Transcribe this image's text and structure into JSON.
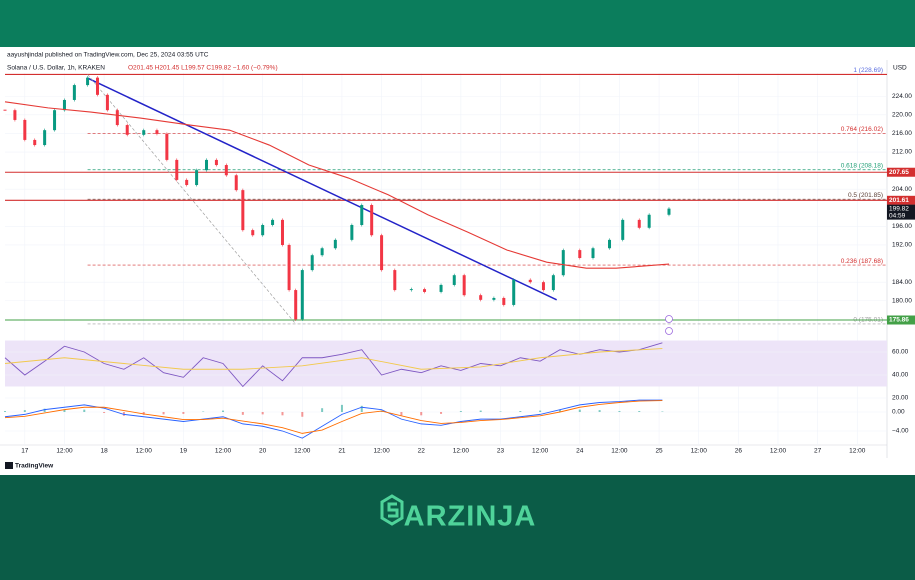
{
  "header": {
    "publisher": "aayushjindal published on TradingView.com, Dec 25, 2024 03:55 UTC",
    "ohlc": "O201.45 H201.45 L199.57 C199.82 −1.60 (−0.79%)",
    "currency": "USD",
    "footer": "TradingView"
  },
  "brand": "ARZINJA",
  "chart_data": [
    {
      "type": "candlestick",
      "title": "Solana / U.S. Dollar, 1h, KRAKEN",
      "up_color": "#089981",
      "down_color": "#f23645",
      "x": [
        -6,
        -3,
        0,
        3,
        6,
        9,
        12,
        15,
        19,
        22,
        25,
        28,
        31,
        36,
        40,
        43,
        46,
        49,
        52,
        55,
        58,
        61,
        64,
        66,
        69,
        72,
        75,
        78,
        80,
        82,
        84,
        87,
        90,
        94,
        99,
        102,
        105,
        108,
        112,
        117,
        121,
        126,
        130,
        133,
        138,
        142,
        145,
        148,
        153,
        157,
        160,
        163,
        168,
        172,
        177,
        181,
        186,
        189,
        195
      ],
      "close": [
        221.0,
        218.9,
        214.6,
        213.5,
        216.7,
        221.0,
        223.2,
        226.4,
        228.0,
        224.3,
        221.0,
        217.8,
        215.7,
        216.7,
        215.9,
        210.3,
        206.0,
        204.9,
        208.1,
        210.3,
        209.2,
        207.0,
        203.8,
        195.2,
        194.1,
        196.3,
        197.4,
        192.0,
        182.3,
        176.0,
        186.6,
        189.8,
        191.3,
        193.1,
        196.3,
        200.6,
        194.1,
        186.6,
        182.3,
        182.5,
        181.9,
        183.4,
        185.5,
        181.2,
        180.2,
        180.6,
        179.1,
        184.5,
        184.0,
        182.3,
        185.5,
        190.9,
        189.2,
        191.3,
        193.1,
        197.4,
        195.7,
        198.5,
        199.82
      ],
      "xlim": [
        -6,
        261
      ],
      "xticks": [
        {
          "value": 0,
          "label": "17"
        },
        {
          "value": 12,
          "label": "12:00"
        },
        {
          "value": 24,
          "label": "18"
        },
        {
          "value": 36,
          "label": "12:00"
        },
        {
          "value": 48,
          "label": "19"
        },
        {
          "value": 60,
          "label": "12:00"
        },
        {
          "value": 72,
          "label": "20"
        },
        {
          "value": 84,
          "label": "12:00"
        },
        {
          "value": 96,
          "label": "21"
        },
        {
          "value": 108,
          "label": "12:00"
        },
        {
          "value": 120,
          "label": "22"
        },
        {
          "value": 132,
          "label": "12:00"
        },
        {
          "value": 144,
          "label": "23"
        },
        {
          "value": 156,
          "label": "12:00"
        },
        {
          "value": 168,
          "label": "24"
        },
        {
          "value": 180,
          "label": "12:00"
        },
        {
          "value": 192,
          "label": "25"
        },
        {
          "value": 204,
          "label": "12:00"
        },
        {
          "value": 216,
          "label": "26"
        },
        {
          "value": 228,
          "label": "12:00"
        },
        {
          "value": 240,
          "label": "27"
        },
        {
          "value": 252,
          "label": "12:00"
        }
      ],
      "ylim": [
        175,
        229
      ],
      "yticks": [
        {
          "value": 180,
          "label": "180.00"
        },
        {
          "value": 184,
          "label": "184.00"
        },
        {
          "value": 192,
          "label": "192.00"
        },
        {
          "value": 196,
          "label": "196.00"
        },
        {
          "value": 204,
          "label": "204.00"
        },
        {
          "value": 212,
          "label": "212.00"
        },
        {
          "value": 216,
          "label": "216.00"
        },
        {
          "value": 220,
          "label": "220.00"
        },
        {
          "value": 224,
          "label": "224.00"
        }
      ],
      "lines": [
        {
          "color": "#e53935",
          "x": [
            -6,
            7,
            20,
            35,
            50,
            62,
            74,
            86,
            98,
            110,
            122,
            134,
            146,
            158,
            170,
            179,
            195
          ],
          "values": [
            222.8,
            221.5,
            220.6,
            219.3,
            217.8,
            216.7,
            213.5,
            209.2,
            206.4,
            202.8,
            198.5,
            194.8,
            190.9,
            188.3,
            187.0,
            187.0,
            187.9
          ]
        }
      ],
      "trendlines": [
        {
          "color": "#2323c8",
          "x": [
            19,
            161
          ],
          "values": [
            227.9,
            180.2
          ]
        },
        {
          "color": "#a0a0a0",
          "x": [
            19,
            82
          ],
          "values": [
            228.69,
            175.01
          ],
          "dashed": true
        }
      ],
      "fib_start": 19,
      "fib_levels": [
        {
          "value": 228.69,
          "label": "1 (228.69)",
          "color": "#5b6ee1"
        },
        {
          "value": 216.02,
          "label": "0.764 (216.02)",
          "color": "#d32f2f"
        },
        {
          "value": 208.18,
          "label": "0.618 (208.18)",
          "color": "#1f9e75"
        },
        {
          "value": 201.85,
          "label": "0.5 (201.85)",
          "color": "#5d4037"
        },
        {
          "value": 187.68,
          "label": "0.236 (187.68)",
          "color": "#d32f2f"
        },
        {
          "value": 175.01,
          "label": "0 (175.01)",
          "color": "#9e9e9e"
        }
      ],
      "hlines": [
        {
          "value": 228.69,
          "color": "#d32f2f"
        },
        {
          "value": 207.65,
          "label": "207.65",
          "color": "#d32f2f"
        },
        {
          "value": 201.61,
          "label": "201.61",
          "color": "#d32f2f"
        },
        {
          "value": 175.86,
          "label": "175.86",
          "color": "#43a047"
        }
      ],
      "last": {
        "value": 199.82,
        "label": "199.82",
        "countdown": "04:59"
      }
    },
    {
      "type": "line",
      "series": [
        {
          "color": "#7e57c2",
          "x": [
            -6,
            0,
            6,
            12,
            18,
            24,
            30,
            36,
            42,
            48,
            54,
            60,
            66,
            72,
            78,
            84,
            90,
            96,
            102,
            108,
            114,
            120,
            126,
            132,
            138,
            144,
            150,
            156,
            162,
            168,
            174,
            180,
            186,
            193
          ],
          "values": [
            55,
            40,
            52,
            65,
            60,
            50,
            45,
            55,
            42,
            38,
            55,
            50,
            30,
            48,
            35,
            55,
            55,
            58,
            62,
            40,
            45,
            42,
            48,
            44,
            50,
            48,
            55,
            52,
            62,
            58,
            62,
            60,
            62,
            68
          ]
        },
        {
          "color": "#f2c94c",
          "x": [
            -6,
            12,
            30,
            48,
            66,
            84,
            102,
            120,
            138,
            156,
            174,
            193
          ],
          "values": [
            50,
            55,
            50,
            45,
            45,
            48,
            55,
            45,
            47,
            55,
            60,
            63
          ]
        }
      ],
      "ylim": [
        18,
        75
      ],
      "yticks": [
        {
          "value": 60,
          "label": "60.00"
        },
        {
          "value": 40,
          "label": "40.00"
        },
        {
          "value": 20,
          "label": "20.00"
        }
      ],
      "band": [
        30,
        70
      ],
      "band_color": "#ede4f8"
    },
    {
      "type": "macd",
      "x": [
        -6,
        0,
        6,
        12,
        18,
        24,
        30,
        36,
        42,
        48,
        54,
        60,
        66,
        72,
        78,
        84,
        90,
        96,
        102,
        108,
        114,
        120,
        126,
        132,
        138,
        144,
        150,
        156,
        162,
        168,
        174,
        180,
        186,
        193
      ],
      "series": [
        {
          "color": "#2962ff",
          "values": [
            -1,
            -0.5,
            0.5,
            1,
            1.5,
            0.8,
            -0.5,
            -1,
            -1.5,
            -2,
            -1.5,
            -1,
            -2.5,
            -3,
            -4,
            -5.5,
            -3,
            -0.5,
            1,
            0.5,
            -1.5,
            -2.5,
            -2.8,
            -2,
            -1.5,
            -1.5,
            -1,
            -0.5,
            0.5,
            1.5,
            2,
            2.2,
            2.5,
            2.5
          ]
        },
        {
          "color": "#ff6d00",
          "values": [
            -1.2,
            -0.9,
            -0.2,
            0.5,
            1,
            1,
            0.3,
            -0.4,
            -1,
            -1.6,
            -1.6,
            -1.3,
            -1.9,
            -2.5,
            -3.3,
            -4.5,
            -3.8,
            -2,
            -0.3,
            0.2,
            -0.8,
            -1.8,
            -2.4,
            -2.2,
            -1.8,
            -1.6,
            -1.2,
            -0.8,
            0,
            1,
            1.6,
            2,
            2.3,
            2.4
          ]
        }
      ],
      "histogram": {
        "up_color": "#26a69a",
        "down_color": "#ef5350"
      },
      "ylim": [
        -6,
        3
      ],
      "yticks": [
        {
          "value": 0,
          "label": "0.00"
        },
        {
          "value": -4,
          "label": "−4.00"
        }
      ]
    }
  ]
}
